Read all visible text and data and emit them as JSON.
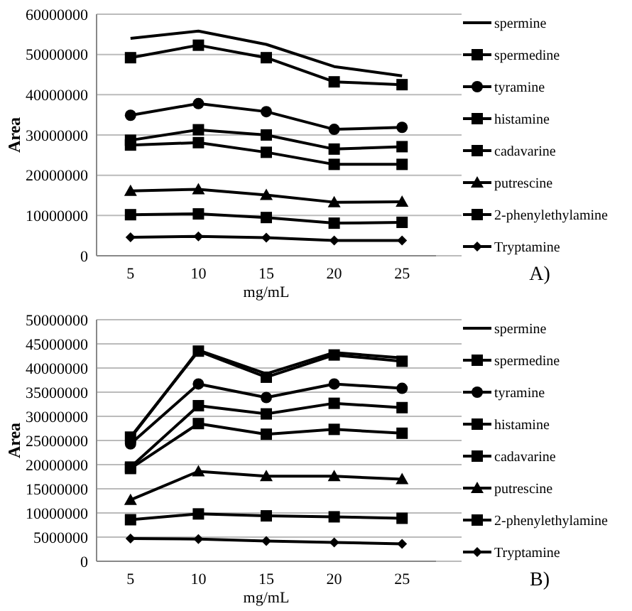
{
  "chart_data": [
    {
      "type": "line",
      "categories": [
        "5",
        "10",
        "15",
        "20",
        "25"
      ],
      "xlabel": "mg/mL",
      "ylabel": "Area",
      "ylim": [
        0,
        60000000
      ],
      "yticks": [
        0,
        10000000,
        20000000,
        30000000,
        40000000,
        50000000,
        60000000
      ],
      "grid": "y",
      "legend": "right",
      "annotations": [
        "A)"
      ],
      "series": [
        {
          "name": "spermine",
          "color": "#000000",
          "marker": "none",
          "values": [
            54000000,
            55800000,
            52500000,
            47000000,
            44700000
          ]
        },
        {
          "name": "spermedine",
          "color": "#000000",
          "marker": "square",
          "values": [
            49200000,
            52300000,
            49200000,
            43200000,
            42500000
          ]
        },
        {
          "name": "tyramine",
          "color": "#000000",
          "marker": "circle",
          "values": [
            34900000,
            37800000,
            35800000,
            31400000,
            31900000
          ]
        },
        {
          "name": "histamine",
          "color": "#000000",
          "marker": "square",
          "values": [
            28700000,
            31300000,
            30000000,
            26500000,
            27100000
          ]
        },
        {
          "name": "cadavarine",
          "color": "#000000",
          "marker": "square",
          "values": [
            27500000,
            28100000,
            25700000,
            22700000,
            22700000
          ]
        },
        {
          "name": "putrescine",
          "color": "#000000",
          "marker": "triangle",
          "values": [
            16100000,
            16500000,
            15100000,
            13300000,
            13400000
          ]
        },
        {
          "name": "2-phenylethylamine",
          "color": "#000000",
          "marker": "square",
          "values": [
            10200000,
            10400000,
            9500000,
            8100000,
            8300000
          ]
        },
        {
          "name": "Tryptamine",
          "color": "#000000",
          "marker": "diamond",
          "values": [
            4600000,
            4800000,
            4500000,
            3800000,
            3800000
          ]
        }
      ]
    },
    {
      "type": "line",
      "categories": [
        "5",
        "10",
        "15",
        "20",
        "25"
      ],
      "xlabel": "mg/mL",
      "ylabel": "Area",
      "ylim": [
        0,
        50000000
      ],
      "yticks": [
        0,
        5000000,
        10000000,
        15000000,
        20000000,
        25000000,
        30000000,
        35000000,
        40000000,
        45000000,
        50000000
      ],
      "grid": "y",
      "legend": "right",
      "annotations": [
        "B)"
      ],
      "series": [
        {
          "name": "spermine",
          "color": "#000000",
          "marker": "none",
          "values": [
            25500000,
            43700000,
            38800000,
            43200000,
            42100000
          ]
        },
        {
          "name": "spermedine",
          "color": "#000000",
          "marker": "square",
          "values": [
            25700000,
            43500000,
            38100000,
            42700000,
            41400000
          ]
        },
        {
          "name": "tyramine",
          "color": "#000000",
          "marker": "circle",
          "values": [
            24300000,
            36700000,
            33900000,
            36700000,
            35800000
          ]
        },
        {
          "name": "histamine",
          "color": "#000000",
          "marker": "square",
          "values": [
            19500000,
            32200000,
            30500000,
            32700000,
            31800000
          ]
        },
        {
          "name": "cadavarine",
          "color": "#000000",
          "marker": "square",
          "values": [
            19200000,
            28500000,
            26300000,
            27300000,
            26500000
          ]
        },
        {
          "name": "putrescine",
          "color": "#000000",
          "marker": "triangle",
          "values": [
            12700000,
            18600000,
            17600000,
            17600000,
            17000000
          ]
        },
        {
          "name": "2-phenylethylamine",
          "color": "#000000",
          "marker": "square",
          "values": [
            8600000,
            9800000,
            9400000,
            9200000,
            8900000
          ]
        },
        {
          "name": "Tryptamine",
          "color": "#000000",
          "marker": "diamond",
          "values": [
            4700000,
            4600000,
            4200000,
            3900000,
            3600000
          ]
        }
      ]
    }
  ]
}
